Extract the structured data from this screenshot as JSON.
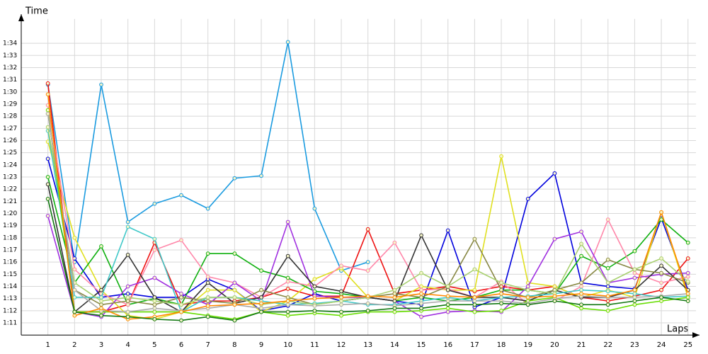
{
  "chart_data": {
    "type": "line",
    "xlabel": "Laps",
    "ylabel": "Time",
    "x": [
      1,
      2,
      3,
      4,
      5,
      6,
      7,
      8,
      9,
      10,
      11,
      12,
      13,
      14,
      15,
      16,
      17,
      18,
      19,
      20,
      21,
      22,
      23,
      24,
      25
    ],
    "xlim": [
      0,
      25.3
    ],
    "xticks": [
      1,
      2,
      3,
      4,
      5,
      6,
      7,
      8,
      9,
      10,
      11,
      12,
      13,
      14,
      15,
      16,
      17,
      18,
      19,
      20,
      21,
      22,
      23,
      24,
      25
    ],
    "ylim": [
      70,
      96
    ],
    "yticks": [
      {
        "value": 71,
        "label": "1:11"
      },
      {
        "value": 72,
        "label": "1:12"
      },
      {
        "value": 73,
        "label": "1:13"
      },
      {
        "value": 74,
        "label": "1:14"
      },
      {
        "value": 75,
        "label": "1:15"
      },
      {
        "value": 76,
        "label": "1:16"
      },
      {
        "value": 77,
        "label": "1:17"
      },
      {
        "value": 78,
        "label": "1:18"
      },
      {
        "value": 79,
        "label": "1:19"
      },
      {
        "value": 80,
        "label": "1:20"
      },
      {
        "value": 81,
        "label": "1:21"
      },
      {
        "value": 82,
        "label": "1:22"
      },
      {
        "value": 83,
        "label": "1:23"
      },
      {
        "value": 84,
        "label": "1:24"
      },
      {
        "value": 85,
        "label": "1:25"
      },
      {
        "value": 86,
        "label": "1:26"
      },
      {
        "value": 87,
        "label": "1:27"
      },
      {
        "value": 88,
        "label": "1:28"
      },
      {
        "value": 89,
        "label": "1:29"
      },
      {
        "value": 90,
        "label": "1:30"
      },
      {
        "value": 91,
        "label": "1:31"
      },
      {
        "value": 92,
        "label": "1:32"
      },
      {
        "value": 93,
        "label": "1:33"
      },
      {
        "value": 94,
        "label": "1:34"
      }
    ],
    "grid": true,
    "series": [
      {
        "color": "#1a9be0",
        "values": [
          90.6,
          76.0,
          90.6,
          79.3,
          80.8,
          81.5,
          80.4,
          82.9,
          83.1,
          94.1,
          80.4,
          75.3,
          76.0,
          null,
          null,
          null,
          null,
          null,
          null,
          null,
          null,
          null,
          null,
          null,
          null
        ]
      },
      {
        "color": "#0000dd",
        "values": [
          84.5,
          76.3,
          73.1,
          73.4,
          73.1,
          73.1,
          74.6,
          73.7,
          72.0,
          72.4,
          73.4,
          72.8,
          73.1,
          72.8,
          72.5,
          78.6,
          72.3,
          73.1,
          81.2,
          83.3,
          74.3,
          74.0,
          73.8,
          79.6,
          73.7
        ]
      },
      {
        "color": "#ee1111",
        "values": [
          90.7,
          71.9,
          71.9,
          72.5,
          77.6,
          72.5,
          72.8,
          72.8,
          73.1,
          73.8,
          73.2,
          73.2,
          78.7,
          73.4,
          73.7,
          74.0,
          73.6,
          74.0,
          73.7,
          74.0,
          73.1,
          72.8,
          73.2,
          73.7,
          76.3
        ]
      },
      {
        "color": "#e0e020",
        "values": [
          85.9,
          78.0,
          73.7,
          71.6,
          71.3,
          71.9,
          73.7,
          73.7,
          71.9,
          72.8,
          74.6,
          75.5,
          73.1,
          72.8,
          74.0,
          73.7,
          73.7,
          84.7,
          74.3,
          74.0,
          73.1,
          73.7,
          73.1,
          80.1,
          73.1
        ]
      },
      {
        "color": "#10b010",
        "values": [
          83.0,
          74.3,
          77.3,
          72.5,
          73.0,
          72.5,
          76.7,
          76.7,
          75.3,
          74.7,
          73.6,
          73.4,
          73.1,
          72.8,
          73.1,
          72.8,
          73.1,
          73.7,
          73.7,
          73.4,
          76.5,
          75.5,
          76.9,
          79.5,
          77.6
        ]
      },
      {
        "color": "#ff88aa",
        "values": [
          88.9,
          75.4,
          73.4,
          72.5,
          77.0,
          77.8,
          74.8,
          74.3,
          73.1,
          74.4,
          74.0,
          75.7,
          75.3,
          77.6,
          73.7,
          73.8,
          73.1,
          74.4,
          72.5,
          72.8,
          74.0,
          79.5,
          75.1,
          74.3,
          74.8
        ]
      },
      {
        "color": "#a030e0",
        "values": [
          79.8,
          71.9,
          71.5,
          74.0,
          74.7,
          73.4,
          72.5,
          74.3,
          72.8,
          79.3,
          73.2,
          73.1,
          73.1,
          72.8,
          71.5,
          71.9,
          72.0,
          71.9,
          74.0,
          77.9,
          78.5,
          74.3,
          74.7,
          75.0,
          75.1
        ]
      },
      {
        "color": "#333333",
        "values": [
          82.4,
          71.9,
          73.7,
          76.6,
          73.1,
          71.9,
          74.3,
          72.6,
          73.1,
          76.5,
          74.0,
          73.6,
          73.1,
          72.8,
          78.2,
          73.7,
          73.1,
          73.1,
          72.8,
          73.7,
          73.1,
          73.1,
          73.7,
          75.7,
          73.7
        ]
      },
      {
        "color": "#888844",
        "values": [
          88.2,
          73.7,
          72.5,
          72.8,
          72.5,
          73.1,
          72.8,
          72.6,
          73.7,
          73.1,
          72.5,
          72.8,
          73.1,
          73.4,
          73.1,
          74.0,
          77.9,
          73.7,
          73.1,
          73.7,
          74.3,
          76.2,
          75.4,
          75.1,
          74.3
        ]
      },
      {
        "color": "#40c8c8",
        "values": [
          86.8,
          73.1,
          73.1,
          78.9,
          77.9,
          71.9,
          73.1,
          73.1,
          72.8,
          72.5,
          72.6,
          72.8,
          72.5,
          72.5,
          72.8,
          73.1,
          72.8,
          73.1,
          73.2,
          73.4,
          73.7,
          73.6,
          73.4,
          73.1,
          73.2
        ]
      },
      {
        "color": "#a8d070",
        "values": [
          87.1,
          74.3,
          72.8,
          73.1,
          72.8,
          72.5,
          73.1,
          73.1,
          72.5,
          72.8,
          72.5,
          72.8,
          73.1,
          73.7,
          75.1,
          74.0,
          75.4,
          74.3,
          73.7,
          73.4,
          77.5,
          74.3,
          75.4,
          76.3,
          74.4
        ]
      },
      {
        "color": "#66dd00",
        "values": [
          88.5,
          71.9,
          71.9,
          71.9,
          71.9,
          71.9,
          71.6,
          71.3,
          71.9,
          71.6,
          71.8,
          71.6,
          71.9,
          71.9,
          72.0,
          72.2,
          71.9,
          72.0,
          72.8,
          73.1,
          72.2,
          72.0,
          72.5,
          72.8,
          73.1
        ]
      },
      {
        "color": "#aaaaaa",
        "values": [
          88.2,
          73.7,
          72.0,
          71.9,
          72.2,
          72.0,
          72.2,
          72.5,
          72.2,
          72.5,
          72.4,
          72.5,
          72.6,
          72.4,
          72.6,
          72.8,
          72.8,
          72.8,
          72.6,
          73.0,
          73.2,
          73.1,
          73.1,
          73.2,
          73.4
        ]
      },
      {
        "color": "#ff8800",
        "values": [
          89.8,
          71.6,
          72.2,
          71.3,
          71.5,
          71.9,
          72.4,
          72.5,
          72.6,
          72.8,
          73.0,
          73.1,
          73.2,
          73.1,
          73.4,
          73.2,
          73.1,
          73.4,
          73.1,
          73.2,
          73.4,
          73.2,
          73.7,
          80.1,
          73.4
        ]
      },
      {
        "color": "#117711",
        "values": [
          81.2,
          71.9,
          71.6,
          71.5,
          71.3,
          71.2,
          71.5,
          71.2,
          71.9,
          71.9,
          72.0,
          71.9,
          72.0,
          72.2,
          72.2,
          72.5,
          72.5,
          72.6,
          72.5,
          72.8,
          72.5,
          72.5,
          72.8,
          73.1,
          72.8
        ]
      }
    ]
  }
}
